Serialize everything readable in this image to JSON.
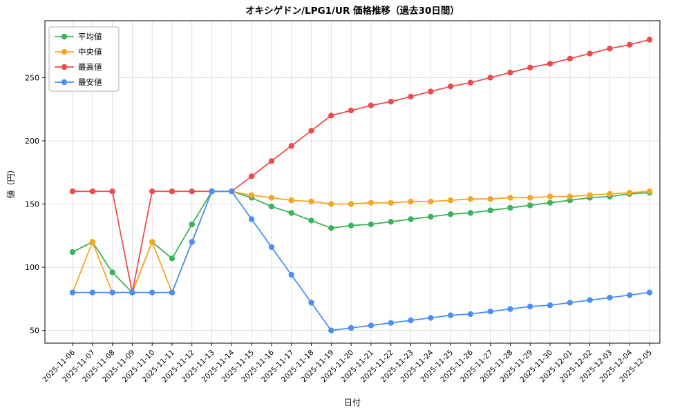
{
  "chart_data": {
    "type": "line",
    "title": "オキシゲドン/LPG1/UR 価格推移（過去30日間）",
    "xlabel": "日付",
    "ylabel": "値（円）",
    "grid": true,
    "legend_position": "upper-left",
    "ylim": [
      40,
      295
    ],
    "yticks": [
      50,
      100,
      150,
      200,
      250
    ],
    "x": [
      "2025-11-06",
      "2025-11-07",
      "2025-11-08",
      "2025-11-09",
      "2025-11-10",
      "2025-11-11",
      "2025-11-12",
      "2025-11-13",
      "2025-11-14",
      "2025-11-15",
      "2025-11-16",
      "2025-11-17",
      "2025-11-18",
      "2025-11-19",
      "2025-11-20",
      "2025-11-21",
      "2025-11-22",
      "2025-11-23",
      "2025-11-24",
      "2025-11-25",
      "2025-11-26",
      "2025-11-27",
      "2025-11-28",
      "2025-11-29",
      "2025-11-30",
      "2025-12-01",
      "2025-12-02",
      "2025-12-03",
      "2025-12-04",
      "2025-12-05"
    ],
    "series": [
      {
        "name": "平均値",
        "color": "#3bb35a",
        "values": [
          112,
          120,
          96,
          80,
          120,
          107,
          134,
          160,
          160,
          155,
          148,
          143,
          137,
          131,
          133,
          134,
          136,
          138,
          140,
          142,
          143,
          145,
          147,
          149,
          151,
          153,
          155,
          156,
          158,
          159
        ]
      },
      {
        "name": "中央値",
        "color": "#f5a623",
        "values": [
          80,
          120,
          80,
          80,
          120,
          80,
          120,
          160,
          160,
          157,
          155,
          153,
          152,
          150,
          150,
          151,
          151,
          152,
          152,
          153,
          154,
          154,
          155,
          155,
          156,
          156,
          157,
          158,
          159,
          160
        ]
      },
      {
        "name": "最高値",
        "color": "#ee4b4b",
        "values": [
          160,
          160,
          160,
          80,
          160,
          160,
          160,
          160,
          160,
          172,
          184,
          196,
          208,
          220,
          224,
          228,
          231,
          235,
          239,
          243,
          246,
          250,
          254,
          258,
          261,
          265,
          269,
          273,
          276,
          280
        ]
      },
      {
        "name": "最安値",
        "color": "#4a90f4",
        "values": [
          80,
          80,
          80,
          80,
          80,
          80,
          120,
          160,
          160,
          138,
          116,
          94,
          72,
          50,
          52,
          54,
          56,
          58,
          60,
          62,
          63,
          65,
          67,
          69,
          70,
          72,
          74,
          76,
          78,
          80
        ]
      }
    ]
  }
}
